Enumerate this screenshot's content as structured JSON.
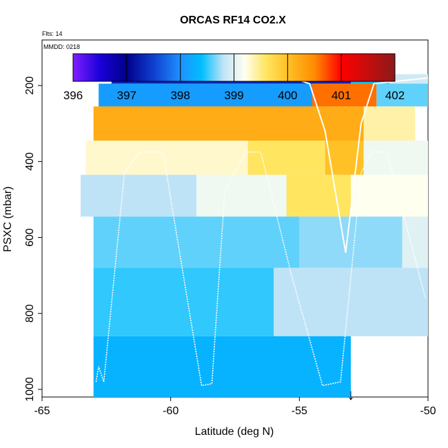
{
  "chart_data": {
    "type": "heatmap",
    "title": "ORCAS RF14 CO2.X",
    "annotations": {
      "flights": "Flts: 14",
      "date": "MMDD: 0218"
    },
    "xlabel": "Latitude (deg N)",
    "ylabel": "PSXC (mbar)",
    "xlim": [
      -65,
      -50
    ],
    "ylim": [
      1020,
      80
    ],
    "x_ticks": [
      "-65",
      "-60",
      "-55",
      "-50"
    ],
    "y_ticks": [
      "200",
      "400",
      "600",
      "800",
      "1000"
    ],
    "colorbar": {
      "range": [
        396,
        402
      ],
      "ticks": [
        "396",
        "397",
        "398",
        "399",
        "400",
        "401",
        "402"
      ],
      "stops": [
        {
          "v": 396.0,
          "c": "#7f1fff"
        },
        {
          "v": 396.5,
          "c": "#1a00d9"
        },
        {
          "v": 397.0,
          "c": "#00008b"
        },
        {
          "v": 397.5,
          "c": "#0f3fcf"
        },
        {
          "v": 398.0,
          "c": "#1e90ff"
        },
        {
          "v": 398.4,
          "c": "#00bfff"
        },
        {
          "v": 398.8,
          "c": "#bfe3f6"
        },
        {
          "v": 399.2,
          "c": "#fffff0"
        },
        {
          "v": 399.6,
          "c": "#ffe560"
        },
        {
          "v": 400.0,
          "c": "#ffc125"
        },
        {
          "v": 400.5,
          "c": "#ff8c00"
        },
        {
          "v": 401.0,
          "c": "#ff0000"
        },
        {
          "v": 402.0,
          "c": "#8b1a1a"
        }
      ]
    },
    "series": [
      {
        "cells": [
          [
            -62.3,
            -53.0,
            170,
            195,
            397.3
          ],
          [
            -53.0,
            -51.5,
            170,
            195,
            398.4
          ],
          [
            -51.5,
            -50.0,
            170,
            195,
            398.9
          ],
          [
            -62.8,
            -54.5,
            195,
            255,
            398.1
          ],
          [
            -54.5,
            -52.0,
            195,
            255,
            400.6
          ],
          [
            -52.0,
            -50.0,
            195,
            255,
            398.6
          ],
          [
            -63.0,
            -52.5,
            255,
            345,
            400.2
          ],
          [
            -52.5,
            -50.5,
            255,
            345,
            399.4
          ],
          [
            -63.3,
            -57.0,
            345,
            435,
            399.3
          ],
          [
            -57.0,
            -54.0,
            345,
            435,
            399.6
          ],
          [
            -54.0,
            -52.5,
            345,
            435,
            400.0
          ],
          [
            -52.5,
            -50.0,
            345,
            435,
            399.1
          ],
          [
            -63.5,
            -59.0,
            435,
            545,
            398.8
          ],
          [
            -59.0,
            -55.5,
            435,
            545,
            399.1
          ],
          [
            -55.5,
            -53.0,
            435,
            545,
            399.6
          ],
          [
            -53.0,
            -50.0,
            435,
            545,
            399.2
          ],
          [
            -63.0,
            -55.0,
            545,
            680,
            398.6
          ],
          [
            -55.0,
            -51.0,
            545,
            680,
            398.7
          ],
          [
            -51.0,
            -50.0,
            545,
            680,
            399.0
          ],
          [
            -63.0,
            -56.0,
            680,
            860,
            398.5
          ],
          [
            -56.0,
            -50.0,
            680,
            860,
            398.8
          ],
          [
            -63.0,
            -53.0,
            860,
            1020,
            398.3
          ]
        ]
      }
    ],
    "flight_track": [
      [
        -62.9,
        980
      ],
      [
        -62.8,
        940
      ],
      [
        -62.6,
        980
      ],
      [
        -61.8,
        430
      ],
      [
        -61.2,
        375
      ],
      [
        -60.3,
        375
      ],
      [
        -58.8,
        990
      ],
      [
        -58.4,
        985
      ],
      [
        -57.9,
        480
      ],
      [
        -57.1,
        375
      ],
      [
        -56.5,
        375
      ],
      [
        -55.3,
        700
      ],
      [
        -54.1,
        990
      ],
      [
        -53.4,
        980
      ],
      [
        -52.6,
        430
      ],
      [
        -52.2,
        375
      ],
      [
        -51.6,
        375
      ],
      [
        -50.1,
        760
      ]
    ],
    "flight_track_upper": [
      [
        -62.2,
        175
      ],
      [
        -60.7,
        175
      ],
      [
        -55.3,
        180
      ],
      [
        -54.6,
        195
      ],
      [
        -54.0,
        320
      ],
      [
        -53.2,
        640
      ],
      [
        -52.6,
        300
      ],
      [
        -52.1,
        195
      ],
      [
        -50.0,
        180
      ]
    ],
    "marker": {
      "x": -53.0,
      "label": "↓"
    }
  }
}
